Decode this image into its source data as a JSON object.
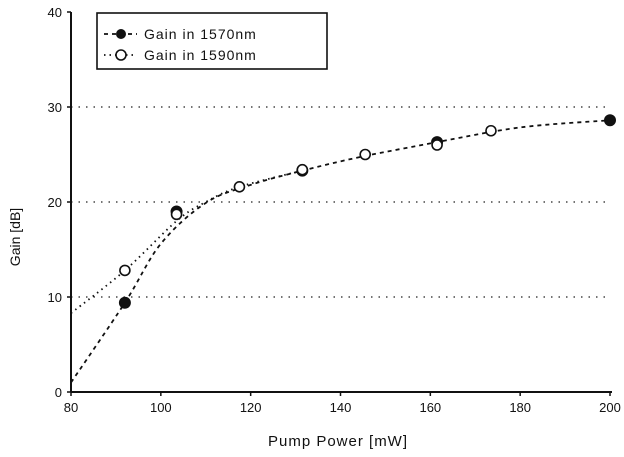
{
  "chart_data": {
    "type": "line",
    "title": "",
    "xlabel": "Pump Power [mW]",
    "ylabel": "Gain [dB]",
    "xlim": [
      80,
      200
    ],
    "ylim": [
      0,
      40
    ],
    "x_ticks": [
      80,
      100,
      120,
      140,
      160,
      180,
      200
    ],
    "y_ticks": [
      0,
      10,
      20,
      30,
      40
    ],
    "grid": "horizontal dotted at 10, 20, 30",
    "legend_position": "top-left",
    "series": [
      {
        "name": "Gain in 1570nm",
        "marker": "filled-circle",
        "line_style": "dashed",
        "points": [
          {
            "x": 92,
            "y": 9.4
          },
          {
            "x": 103.5,
            "y": 19.0
          },
          {
            "x": 131.5,
            "y": 23.3
          },
          {
            "x": 161.5,
            "y": 26.3
          },
          {
            "x": 200,
            "y": 28.6
          }
        ],
        "fit_curve": [
          {
            "x": 80,
            "y": 1.0
          },
          {
            "x": 92,
            "y": 9.4
          },
          {
            "x": 100,
            "y": 15.6
          },
          {
            "x": 110,
            "y": 19.9
          },
          {
            "x": 120,
            "y": 21.8
          },
          {
            "x": 131.5,
            "y": 23.3
          },
          {
            "x": 145,
            "y": 24.8
          },
          {
            "x": 161.5,
            "y": 26.3
          },
          {
            "x": 175,
            "y": 27.5
          },
          {
            "x": 185,
            "y": 28.1
          },
          {
            "x": 200,
            "y": 28.6
          }
        ]
      },
      {
        "name": "Gain in 1590nm",
        "marker": "open-circle",
        "line_style": "dotted",
        "points": [
          {
            "x": 92,
            "y": 12.8
          },
          {
            "x": 103.5,
            "y": 18.7
          },
          {
            "x": 117.5,
            "y": 21.6
          },
          {
            "x": 131.5,
            "y": 23.4
          },
          {
            "x": 145.5,
            "y": 25.0
          },
          {
            "x": 161.5,
            "y": 26.0
          },
          {
            "x": 173.5,
            "y": 27.5
          }
        ],
        "fit_curve": [
          {
            "x": 80,
            "y": 8.3
          },
          {
            "x": 92,
            "y": 12.8
          },
          {
            "x": 103.5,
            "y": 18.0
          },
          {
            "x": 110,
            "y": 20.0
          },
          {
            "x": 117.5,
            "y": 21.6
          },
          {
            "x": 131.5,
            "y": 23.3
          }
        ]
      }
    ]
  },
  "legend": {
    "items": [
      {
        "label": "Gain in 1570nm",
        "marker": "filled-circle",
        "line_style": "dashed"
      },
      {
        "label": "Gain in 1590nm",
        "marker": "open-circle",
        "line_style": "dotted"
      }
    ]
  }
}
